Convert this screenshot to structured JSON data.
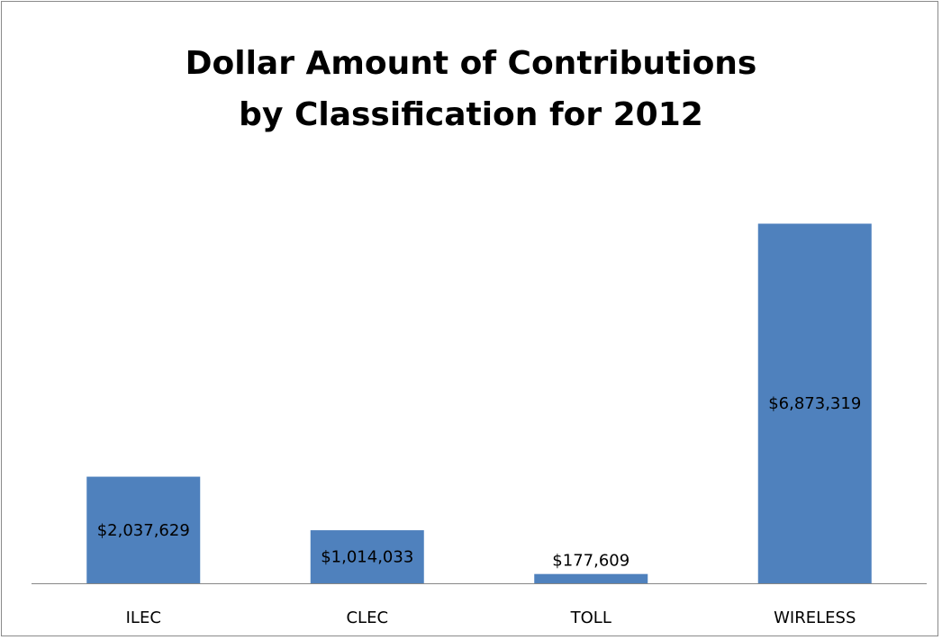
{
  "chart_data": {
    "type": "bar",
    "title_lines": [
      "Dollar Amount of Contributions",
      "by Classification for 2012"
    ],
    "categories": [
      "ILEC",
      "CLEC",
      "TOLL",
      "WIRELESS"
    ],
    "values": [
      2037629,
      1014033,
      177609,
      6873319
    ],
    "value_labels": [
      "$2,037,629",
      "$1,014,033",
      "$177,609",
      "$6,873,319"
    ],
    "ylim": [
      0,
      8000000
    ],
    "grid": false,
    "legend": "none",
    "colors": {
      "bar": "#4f81bd",
      "axis": "#878787",
      "border": "#8a8a8a"
    }
  }
}
